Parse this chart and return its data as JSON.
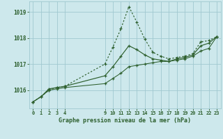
{
  "title": "Graphe pression niveau de la mer (hPa)",
  "bg_color": "#cde8ec",
  "grid_color": "#a0c8d0",
  "line_color_dark": "#2d5f2d",
  "xlim": [
    -0.5,
    23.5
  ],
  "ylim": [
    1015.3,
    1019.4
  ],
  "yticks": [
    1016,
    1017,
    1018,
    1019
  ],
  "xticks": [
    0,
    1,
    2,
    3,
    4,
    9,
    10,
    11,
    12,
    13,
    14,
    15,
    16,
    17,
    18,
    19,
    20,
    21,
    22,
    23
  ],
  "series1_x": [
    0,
    1,
    2,
    3,
    4,
    9,
    10,
    11,
    12,
    13,
    14,
    15,
    16,
    17,
    18,
    19,
    20,
    21,
    22,
    23
  ],
  "series1_y": [
    1015.55,
    1015.75,
    1016.0,
    1016.1,
    1016.15,
    1017.0,
    1017.65,
    1018.35,
    1019.2,
    1018.6,
    1017.95,
    1017.45,
    1017.3,
    1017.2,
    1017.25,
    1017.3,
    1017.4,
    1017.85,
    1017.9,
    1018.05
  ],
  "series2_x": [
    0,
    1,
    2,
    3,
    4,
    9,
    10,
    11,
    12,
    13,
    14,
    15,
    16,
    17,
    18,
    19,
    20,
    21,
    22,
    23
  ],
  "series2_y": [
    1015.55,
    1015.75,
    1016.05,
    1016.1,
    1016.15,
    1016.55,
    1016.9,
    1017.3,
    1017.7,
    1017.55,
    1017.35,
    1017.2,
    1017.15,
    1017.1,
    1017.2,
    1017.25,
    1017.35,
    1017.7,
    1017.8,
    1018.05
  ],
  "series3_x": [
    0,
    1,
    2,
    3,
    4,
    9,
    10,
    11,
    12,
    13,
    14,
    15,
    16,
    17,
    18,
    19,
    20,
    21,
    22,
    23
  ],
  "series3_y": [
    1015.55,
    1015.75,
    1016.0,
    1016.05,
    1016.1,
    1016.25,
    1016.45,
    1016.65,
    1016.9,
    1016.95,
    1017.0,
    1017.05,
    1017.1,
    1017.1,
    1017.15,
    1017.2,
    1017.3,
    1017.5,
    1017.6,
    1018.05
  ]
}
